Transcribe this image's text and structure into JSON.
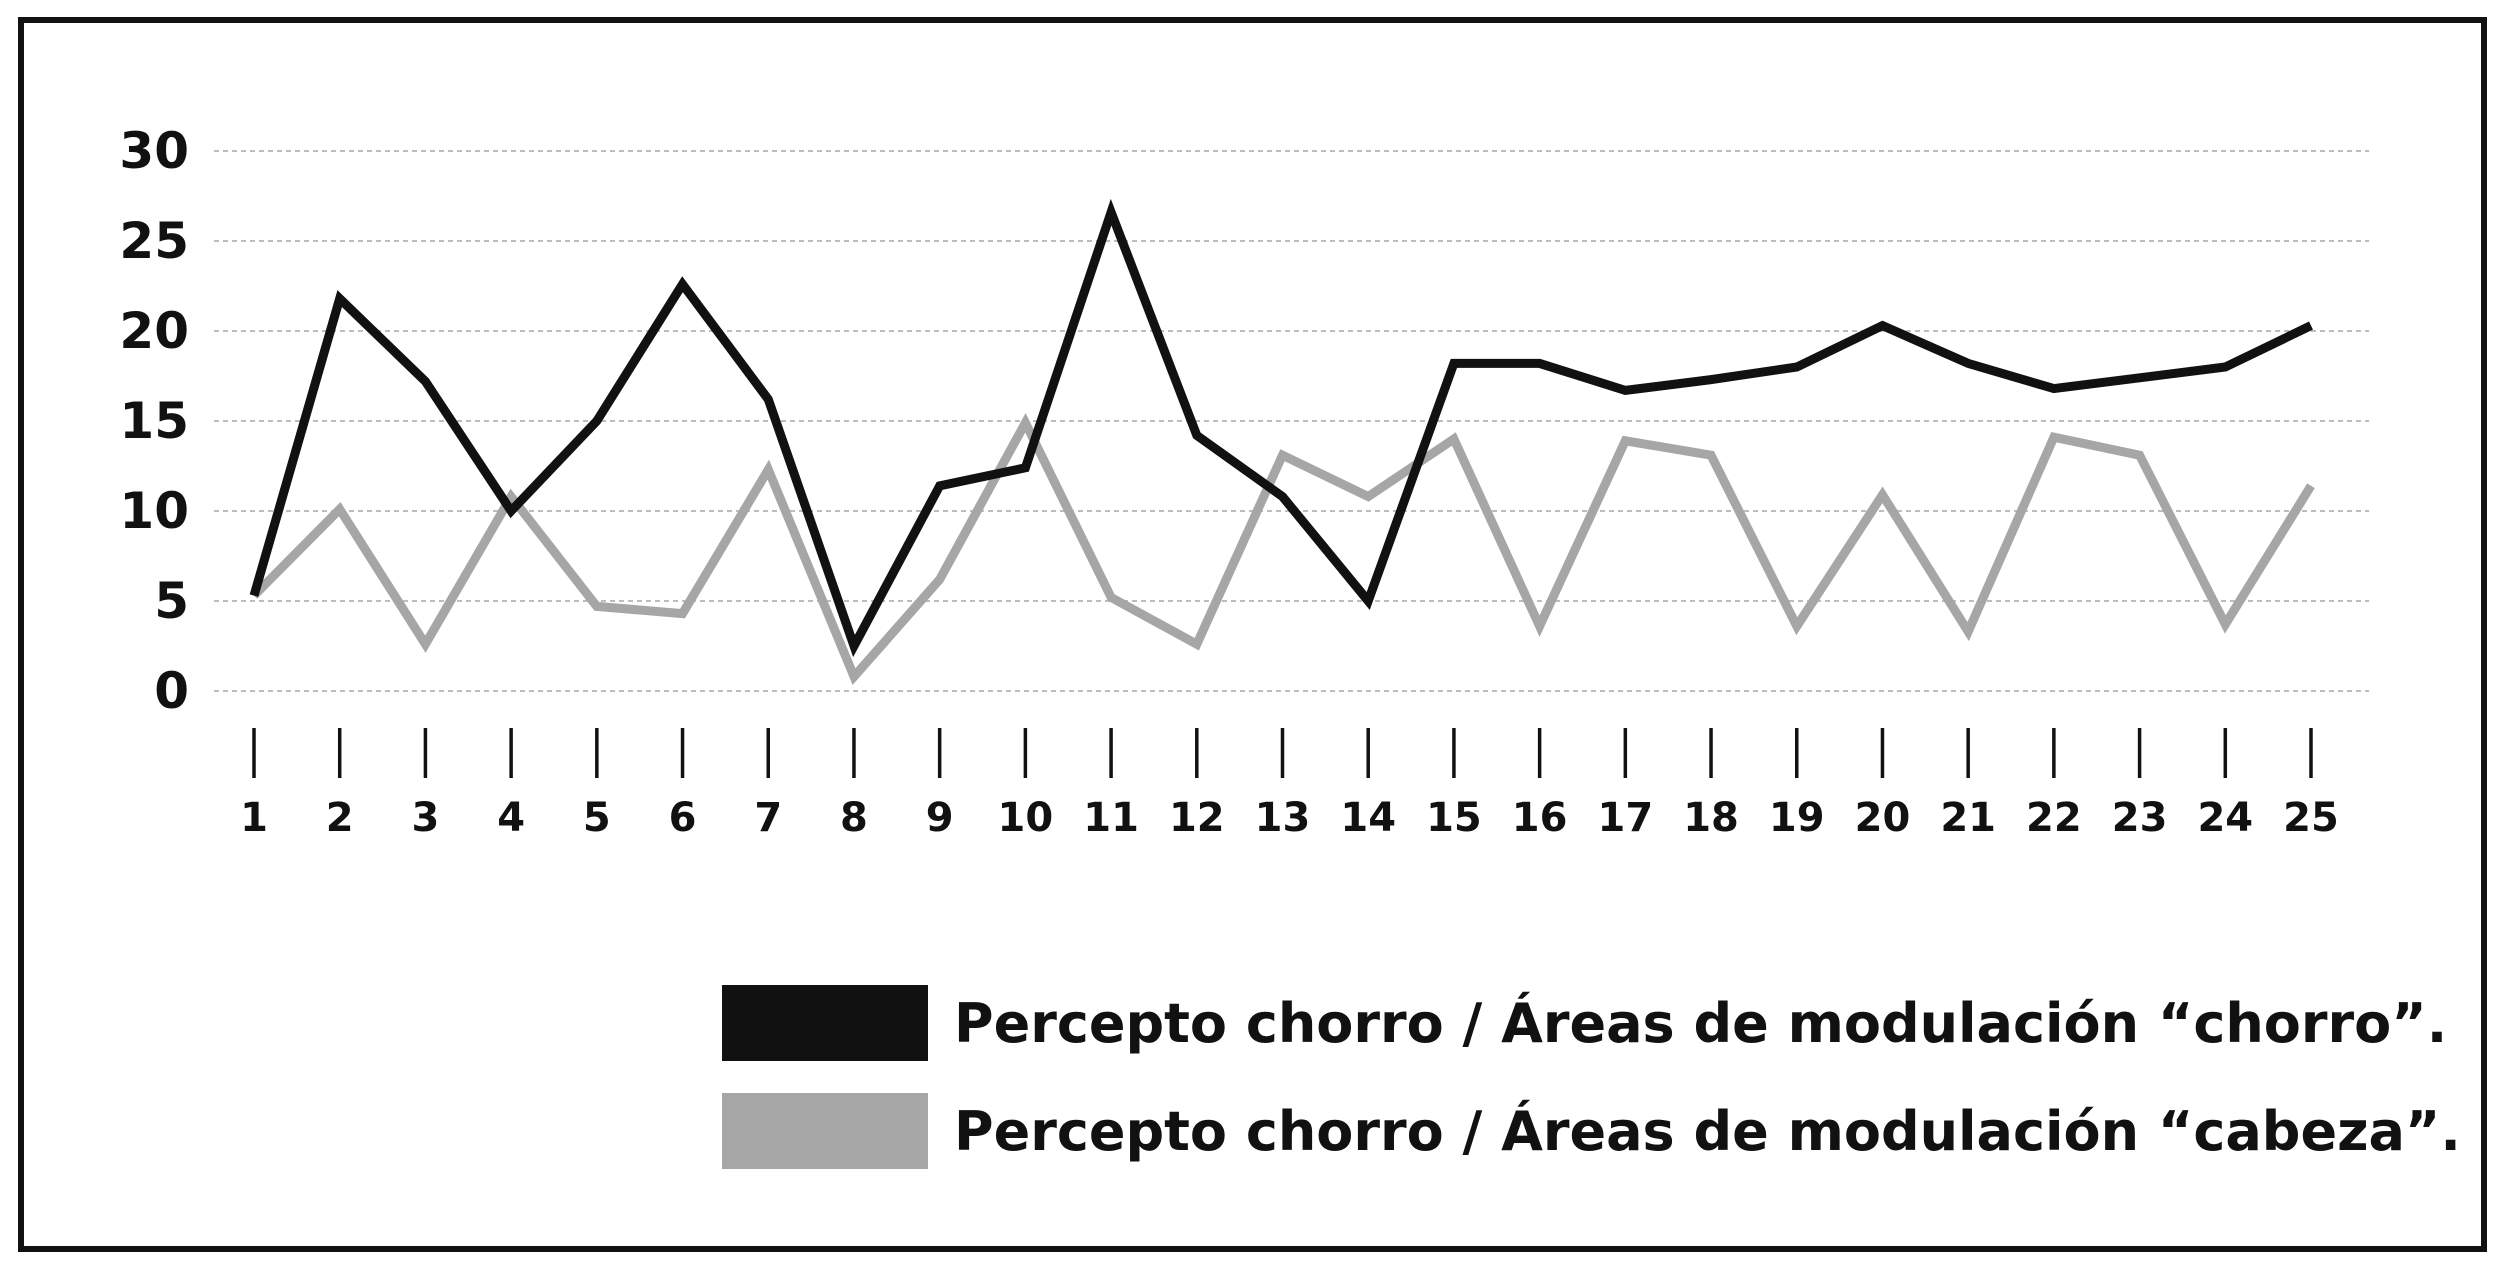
{
  "chart_data": {
    "type": "line",
    "title": "",
    "xlabel": "",
    "ylabel": "",
    "x": [
      1,
      2,
      3,
      4,
      5,
      6,
      7,
      8,
      9,
      10,
      11,
      12,
      13,
      14,
      15,
      16,
      17,
      18,
      19,
      20,
      21,
      22,
      23,
      24,
      25
    ],
    "ylim": [
      0,
      30
    ],
    "yticks": [
      0,
      5,
      10,
      15,
      20,
      25,
      30
    ],
    "grid": true,
    "legend_position": "bottom-right",
    "series": [
      {
        "name": "Percepto chorro / Áreas de modulación “chorro”.",
        "color": "#111111",
        "values": [
          5.3,
          21.8,
          17.2,
          10.0,
          15.0,
          22.6,
          16.2,
          2.5,
          11.4,
          12.4,
          26.6,
          14.2,
          10.8,
          5.0,
          18.2,
          18.2,
          16.7,
          17.3,
          18.0,
          20.3,
          18.2,
          16.8,
          17.4,
          18.0,
          20.3
        ]
      },
      {
        "name": "Percepto chorro / Áreas de modulación “cabeza”.",
        "color": "#a6a6a6",
        "values": [
          5.3,
          10.1,
          2.6,
          10.8,
          4.7,
          4.3,
          12.3,
          0.8,
          6.2,
          14.9,
          5.2,
          2.6,
          13.1,
          10.8,
          14.0,
          3.6,
          13.9,
          13.1,
          3.6,
          10.9,
          3.3,
          14.1,
          13.1,
          3.7,
          11.4
        ]
      }
    ]
  }
}
